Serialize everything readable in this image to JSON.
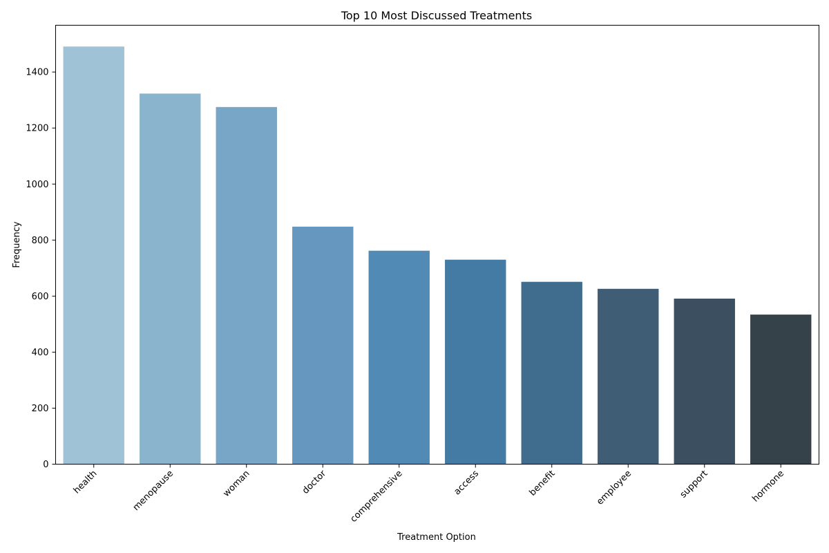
{
  "chart_data": {
    "type": "bar",
    "title": "Top 10 Most Discussed Treatments",
    "xlabel": "Treatment Option",
    "ylabel": "Frequency",
    "categories": [
      "health",
      "menopause",
      "woman",
      "doctor",
      "comprehensive",
      "access",
      "benefit",
      "employee",
      "support",
      "hormone"
    ],
    "values": [
      1491,
      1323,
      1275,
      848,
      762,
      730,
      651,
      626,
      591,
      534
    ],
    "colors": [
      "#9fc2d7",
      "#8ab3cd",
      "#78a6c6",
      "#6698bf",
      "#528ab6",
      "#447ba4",
      "#406c8e",
      "#3f5e76",
      "#3c4f61",
      "#36424a"
    ],
    "ylim": [
      0,
      1567
    ],
    "yticks": [
      0,
      200,
      400,
      600,
      800,
      1000,
      1200,
      1400
    ],
    "grid": false,
    "legend": "none"
  }
}
